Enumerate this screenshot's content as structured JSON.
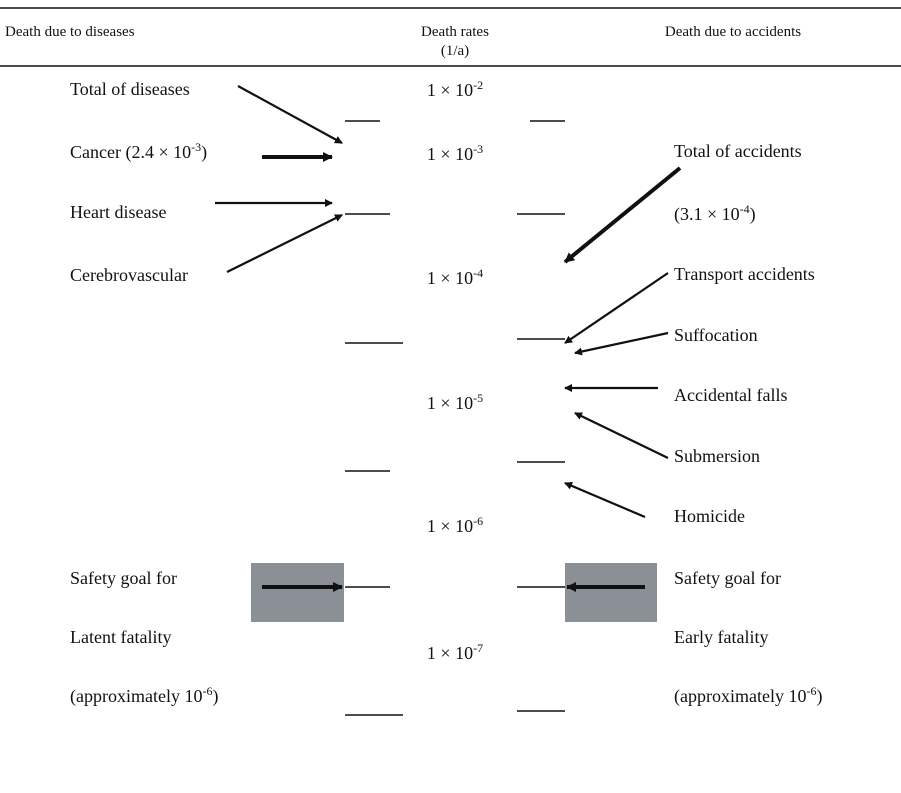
{
  "header": {
    "left": "Death due to diseases",
    "middle": "Death rates",
    "unit": "(1/a)",
    "right": "Death due to accidents"
  },
  "scale": [
    {
      "base": "1 × 10",
      "exp": "-2"
    },
    {
      "base": "1 × 10",
      "exp": "-3"
    },
    {
      "base": "1 × 10",
      "exp": "-4"
    },
    {
      "base": "1 × 10",
      "exp": "-5"
    },
    {
      "base": "1 × 10",
      "exp": "-6"
    },
    {
      "base": "1 × 10",
      "exp": "-7"
    }
  ],
  "left_labels": [
    {
      "text": "Total of diseases"
    },
    {
      "text": "Cancer (2.4 × 10",
      "sup": "-3",
      "after": ")"
    },
    {
      "text": "Heart disease"
    },
    {
      "text": "Cerebrovascular"
    },
    {
      "text": "Safety goal for"
    },
    {
      "text": "Latent fatality"
    },
    {
      "text": "(approximately 10",
      "sup": "-6",
      "after": ")"
    }
  ],
  "right_labels": [
    {
      "text": "Total of accidents"
    },
    {
      "text": "(3.1 × 10",
      "sup": "-4",
      "after": ")"
    },
    {
      "text": "Transport accidents"
    },
    {
      "text": "Suffocation"
    },
    {
      "text": "Accidental falls"
    },
    {
      "text": "Submersion"
    },
    {
      "text": "Homicide"
    },
    {
      "text": "Safety goal for"
    },
    {
      "text": "Early fatality"
    },
    {
      "text": "(approximately 10",
      "sup": "-6",
      "after": ")"
    }
  ]
}
